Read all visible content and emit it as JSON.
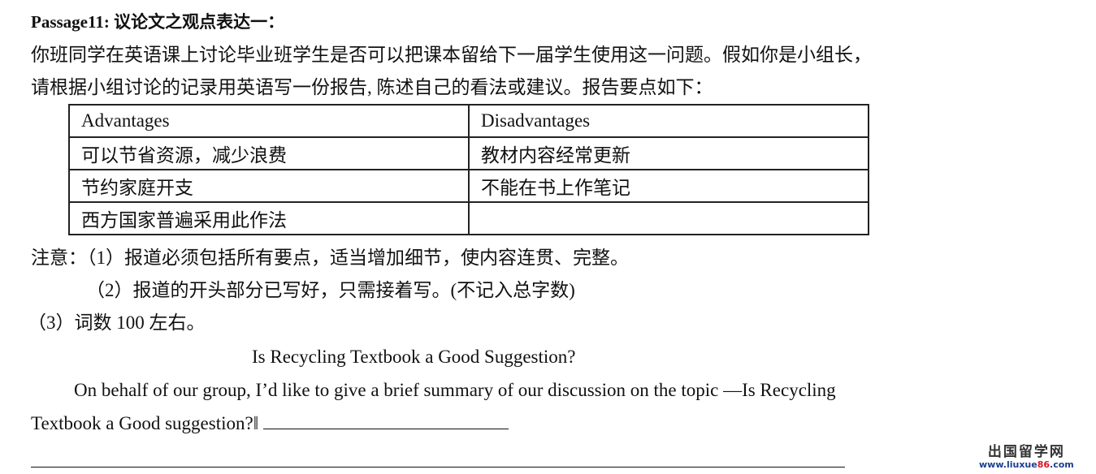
{
  "title": "Passage11:  议论文之观点表达一：",
  "intro": [
    "你班同学在英语课上讨论毕业班学生是否可以把课本留给下一届学生使用这一问题。假如你是小组长，",
    "请根据小组讨论的记录用英语写一份报告, 陈述自己的看法或建议。报告要点如下："
  ],
  "table": {
    "headers": [
      "Advantages",
      "Disadvantages"
    ],
    "rows": [
      [
        "可以节省资源，减少浪费",
        "教材内容经常更新"
      ],
      [
        "节约家庭开支",
        "不能在书上作笔记"
      ],
      [
        "西方国家普遍采用此作法",
        ""
      ]
    ]
  },
  "notes": [
    "注意：（1）报道必须包括所有要点，适当增加细节，使内容连贯、完整。",
    "（2）报道的开头部分已写好，只需接着写。(不记入总字数)",
    "（3）词数 100 左右。"
  ],
  "essay_title": "Is Recycling Textbook a Good Suggestion?",
  "essay_line1": "On behalf of our group, I’d like to give a brief summary of our discussion on the topic —Is Recycling",
  "essay_line2": "Textbook a Good suggestion?‖",
  "watermark": {
    "cn": "出国留学网",
    "url_a": "www.liuxue",
    "url_b": "86",
    "url_c": ".com"
  }
}
